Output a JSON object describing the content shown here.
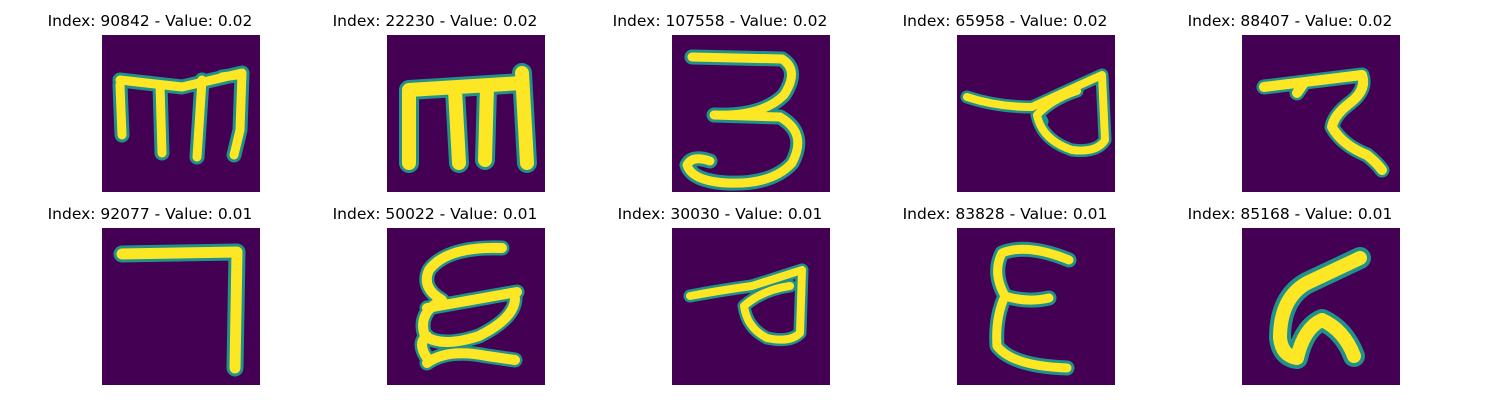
{
  "panels": [
    {
      "title": "Index: 90842 - Value: 0.02",
      "glyph": "m-script-open"
    },
    {
      "title": "Index: 22230 - Value: 0.02",
      "glyph": "m-script-bold"
    },
    {
      "title": "Index: 107558 - Value: 0.02",
      "glyph": "three-hook"
    },
    {
      "title": "Index: 65958 - Value: 0.02",
      "glyph": "loop-left-tail"
    },
    {
      "title": "Index: 88407 - Value: 0.02",
      "glyph": "z-swirl"
    },
    {
      "title": "Index: 92077 - Value: 0.01",
      "glyph": "seven-bar"
    },
    {
      "title": "Index: 50022 - Value: 0.01",
      "glyph": "double-epsilon"
    },
    {
      "title": "Index: 30030 - Value: 0.01",
      "glyph": "loop-left-tail-small"
    },
    {
      "title": "Index: 83828 - Value: 0.01",
      "glyph": "epsilon"
    },
    {
      "title": "Index: 85168 - Value: 0.01",
      "glyph": "g-swirl"
    }
  ],
  "colors": {
    "background": "#440154",
    "stroke": "#fde725",
    "edge": "#21918c"
  }
}
